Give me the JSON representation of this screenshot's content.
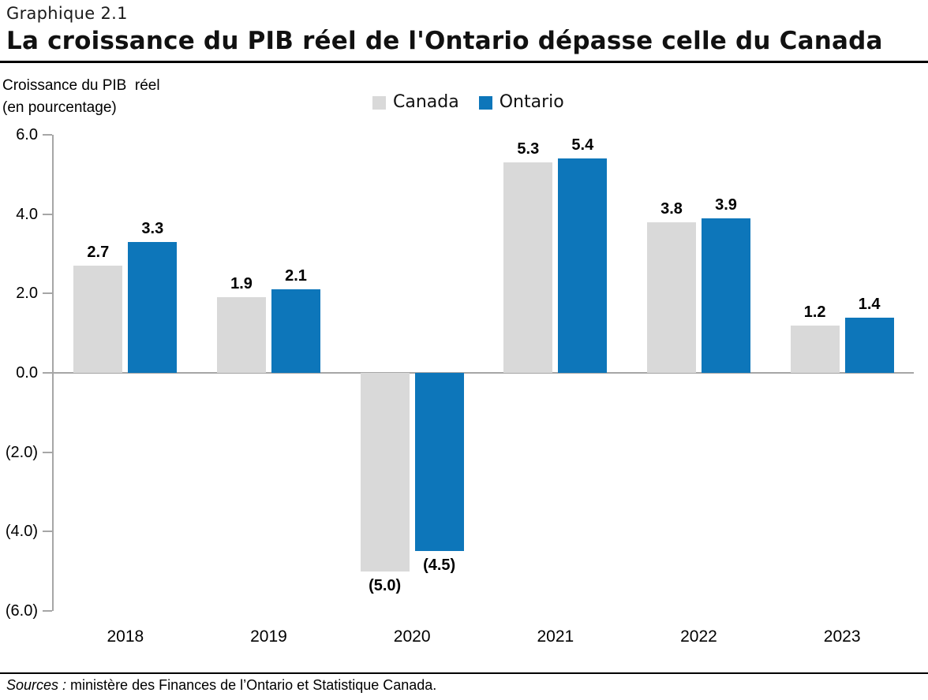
{
  "header": {
    "eyebrow": "Graphique 2.1",
    "title": "La croissance du PIB réel de l'Ontario dépasse celle du Canada"
  },
  "axis_caption": {
    "line1": "Croissance du PIB  réel",
    "line2": "(en pourcentage)"
  },
  "colors": {
    "canada_bar": "#d9d9d9",
    "ontario_bar": "#0d76ba",
    "axis_gray": "#a6a6a6",
    "text": "#000000"
  },
  "chart_data": {
    "type": "bar",
    "title": "La croissance du PIB réel de l'Ontario dépasse celle du Canada",
    "ylabel": "Croissance du PIB réel (en pourcentage)",
    "xlabel": "",
    "categories": [
      "2018",
      "2019",
      "2020",
      "2021",
      "2022",
      "2023"
    ],
    "series": [
      {
        "name": "Canada",
        "color": "#d9d9d9",
        "values": [
          2.7,
          1.9,
          -5.0,
          5.3,
          3.8,
          1.2
        ],
        "labels": [
          "2.7",
          "1.9",
          "(5.0)",
          "5.3",
          "3.8",
          "1.2"
        ]
      },
      {
        "name": "Ontario",
        "color": "#0d76ba",
        "values": [
          3.3,
          2.1,
          -4.5,
          5.4,
          3.9,
          1.4
        ],
        "labels": [
          "3.3",
          "2.1",
          "(4.5)",
          "5.4",
          "3.9",
          "1.4"
        ]
      }
    ],
    "ylim": [
      -6.0,
      6.0
    ],
    "yticks": [
      6,
      4,
      2,
      0,
      -2,
      -4,
      -6
    ],
    "ytick_labels": [
      "6.0",
      "4.0",
      "2.0",
      "0.0",
      "(2.0)",
      "(4.0)",
      "(6.0)"
    ],
    "grid": false,
    "legend_position": "top"
  },
  "footer": {
    "sources_label": "Sources :",
    "sources_text": " ministère des Finances de l’Ontario et Statistique Canada."
  }
}
